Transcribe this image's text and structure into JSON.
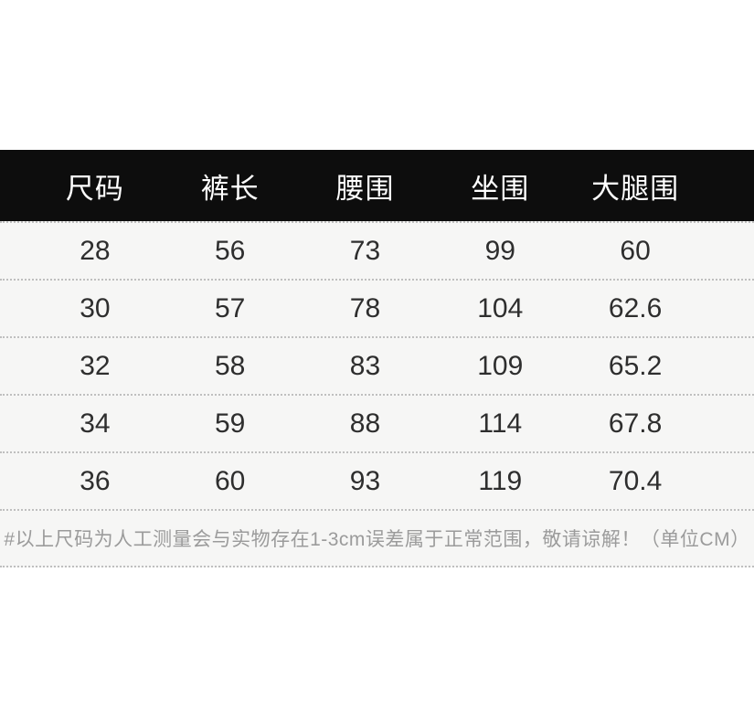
{
  "chart_data": {
    "type": "table",
    "columns": [
      "尺码",
      "裤长",
      "腰围",
      "坐围",
      "大腿围"
    ],
    "rows": [
      [
        "28",
        "56",
        "73",
        "99",
        "60"
      ],
      [
        "30",
        "57",
        "78",
        "104",
        "62.6"
      ],
      [
        "32",
        "58",
        "83",
        "109",
        "65.2"
      ],
      [
        "34",
        "59",
        "88",
        "114",
        "67.8"
      ],
      [
        "36",
        "60",
        "93",
        "119",
        "70.4"
      ]
    ],
    "footnote": "#以上尺码为人工测量会与实物存在1-3cm误差属于正常范围，敬请谅解！（单位CM）",
    "unit": "CM"
  },
  "colors": {
    "header_bg": "#0d0d0d",
    "header_text": "#ffffff",
    "row_bg": "#f6f6f5",
    "separator": "#bfbfbf",
    "cell_text": "#2e2e2e",
    "footnote_text": "#9b9b9b",
    "page_bg": "#ffffff"
  }
}
